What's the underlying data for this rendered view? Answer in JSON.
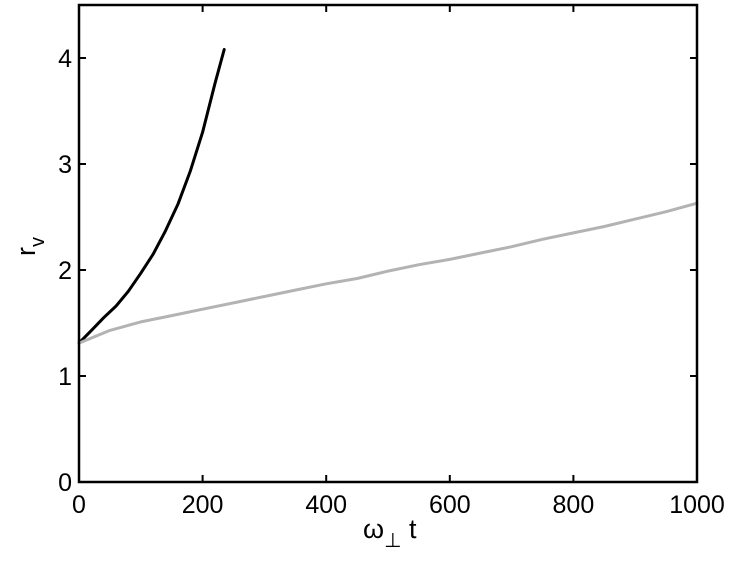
{
  "chart_data": {
    "type": "line",
    "title": "",
    "xlabel": {
      "main": "ω",
      "sub": "⊥",
      "suffix": " t"
    },
    "ylabel": {
      "main": "r",
      "sub": "v"
    },
    "xlim": [
      0,
      1000
    ],
    "ylim": [
      0,
      4.5
    ],
    "xticks": [
      0,
      200,
      400,
      600,
      800,
      1000
    ],
    "yticks": [
      0,
      1,
      2,
      3,
      4
    ],
    "xtick_labels": [
      "0",
      "200",
      "400",
      "600",
      "800",
      "1000"
    ],
    "ytick_labels": [
      "0",
      "1",
      "2",
      "3",
      "4"
    ],
    "grid": false,
    "legend": "none",
    "series": [
      {
        "color": "#000000",
        "x": [
          0,
          20,
          40,
          60,
          80,
          100,
          120,
          140,
          160,
          180,
          200,
          220,
          235
        ],
        "y": [
          1.31,
          1.43,
          1.55,
          1.66,
          1.8,
          1.97,
          2.15,
          2.37,
          2.62,
          2.93,
          3.3,
          3.76,
          4.08
        ]
      },
      {
        "color": "#b3b3b3",
        "x": [
          0,
          50,
          100,
          150,
          200,
          250,
          300,
          350,
          400,
          450,
          500,
          550,
          600,
          650,
          700,
          750,
          800,
          850,
          900,
          950,
          1000
        ],
        "y": [
          1.31,
          1.43,
          1.51,
          1.57,
          1.63,
          1.69,
          1.75,
          1.81,
          1.87,
          1.92,
          1.99,
          2.05,
          2.1,
          2.16,
          2.22,
          2.29,
          2.35,
          2.41,
          2.48,
          2.55,
          2.63
        ]
      }
    ]
  }
}
